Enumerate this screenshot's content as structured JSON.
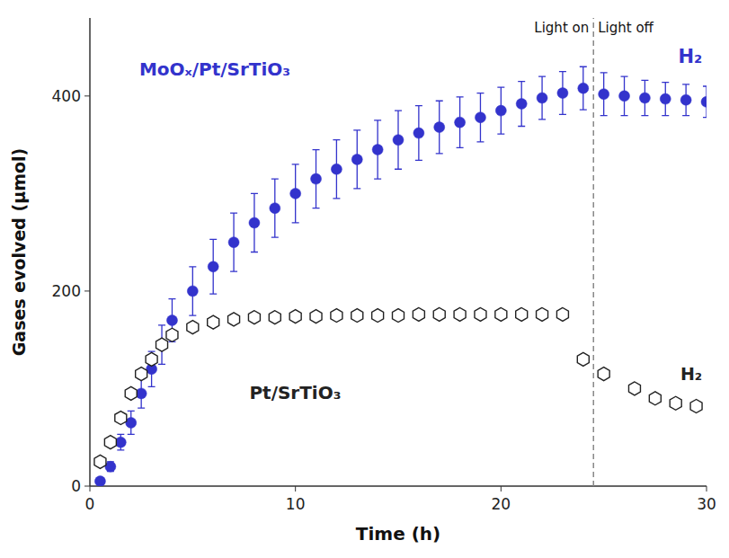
{
  "chart_data": {
    "type": "scatter",
    "title": "",
    "x_label": "Time (h)",
    "y_label": "Gases evolved (μmol)",
    "xlim": [
      0,
      30
    ],
    "ylim": [
      0,
      480
    ],
    "xticks": [
      0,
      10,
      20,
      30
    ],
    "yticks": [
      0,
      200,
      400
    ],
    "grid": false,
    "vline_x": 24.5,
    "annotations": [
      "Light on",
      "Light off"
    ],
    "series": [
      {
        "name": "MoOₓ/Pt/SrTiO₃",
        "end_label": "H₂",
        "color": "#3333cc",
        "marker": "circle",
        "x": [
          0.5,
          1.0,
          1.5,
          2.0,
          2.5,
          3.0,
          3.5,
          4.0,
          5.0,
          6.0,
          7.0,
          8.0,
          9.0,
          10.0,
          11.0,
          12.0,
          13.0,
          14.0,
          15.0,
          16.0,
          17.0,
          18.0,
          19.0,
          20.0,
          21.0,
          22.0,
          23.0,
          24.0,
          25.0,
          26.0,
          27.0,
          28.0,
          29.0,
          30.0
        ],
        "values": [
          5,
          20,
          45,
          65,
          95,
          120,
          145,
          170,
          200,
          225,
          250,
          270,
          285,
          300,
          315,
          325,
          335,
          345,
          355,
          362,
          368,
          373,
          378,
          385,
          392,
          398,
          403,
          408,
          402,
          400,
          398,
          397,
          396,
          394
        ],
        "errors": [
          3,
          5,
          8,
          12,
          15,
          18,
          20,
          22,
          25,
          28,
          30,
          30,
          30,
          30,
          30,
          30,
          30,
          30,
          30,
          28,
          27,
          26,
          25,
          24,
          23,
          22,
          22,
          22,
          22,
          20,
          18,
          17,
          16,
          16
        ]
      },
      {
        "name": "Pt/SrTiO₃",
        "end_label": "H₂",
        "color": "#222222",
        "marker": "hexagon",
        "x": [
          0.5,
          1.0,
          1.5,
          2.0,
          2.5,
          3.0,
          3.5,
          4.0,
          5.0,
          6.0,
          7.0,
          8.0,
          9.0,
          10.0,
          11.0,
          12.0,
          13.0,
          14.0,
          15.0,
          16.0,
          17.0,
          18.0,
          19.0,
          20.0,
          21.0,
          22.0,
          23.0,
          24.0,
          25.0,
          26.5,
          27.5,
          28.5,
          29.5
        ],
        "values": [
          25,
          45,
          70,
          95,
          115,
          130,
          145,
          155,
          163,
          168,
          171,
          173,
          173,
          174,
          174,
          175,
          175,
          175,
          175,
          176,
          176,
          176,
          176,
          176,
          176,
          176,
          176,
          130,
          115,
          100,
          90,
          85,
          82
        ]
      }
    ]
  }
}
